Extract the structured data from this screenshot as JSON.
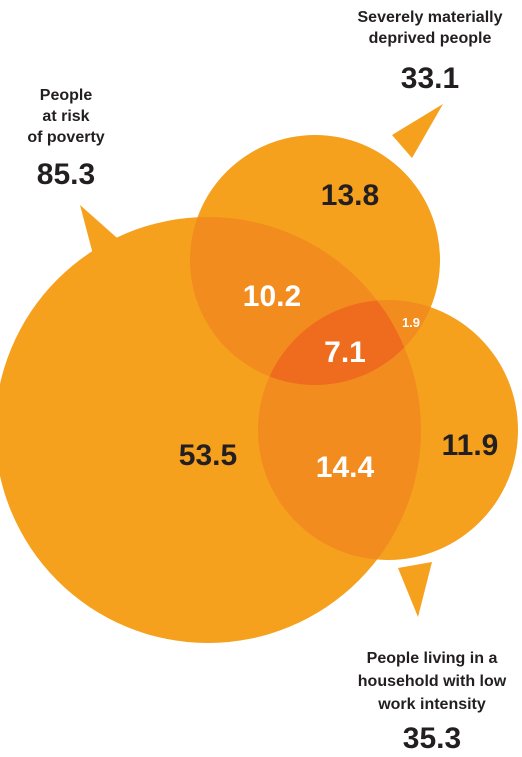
{
  "colors": {
    "circle": "#f5a11d",
    "overlap_two": "#f28c1f",
    "overlap_three": "#ef6b1e",
    "text_dark": "#231f20",
    "text_light": "#ffffff"
  },
  "sets": {
    "poverty": {
      "title_lines": [
        "People",
        "at risk",
        "of poverty"
      ],
      "total": "85.3"
    },
    "deprived": {
      "title_lines": [
        "Severely materially",
        "deprived people"
      ],
      "total": "33.1"
    },
    "low_work": {
      "title_lines": [
        "People living in a",
        "household with low",
        "work intensity"
      ],
      "total": "35.3"
    }
  },
  "regions": {
    "poverty_only": "53.5",
    "deprived_only": "13.8",
    "low_work_only": "11.9",
    "poverty_deprived": "10.2",
    "poverty_low_work": "14.4",
    "deprived_low_work": "1.9",
    "all_three": "7.1"
  }
}
